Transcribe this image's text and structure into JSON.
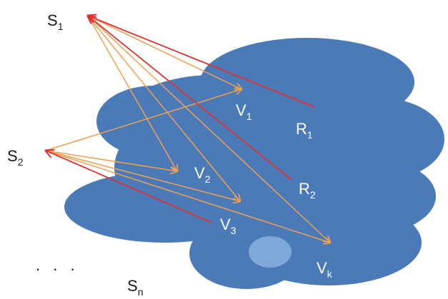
{
  "colors": {
    "cloud": "#4a7ab8",
    "highlight": "#7fa8d8",
    "orange": "#f0a050",
    "red": "#e03030",
    "dark_text": "#1a1a1a",
    "light_text": "#ffffff"
  },
  "sources": {
    "s1": {
      "main": "S",
      "sub": "1"
    },
    "s2": {
      "main": "S",
      "sub": "2"
    },
    "sn": {
      "main": "S",
      "sub": "n"
    }
  },
  "ellipsis": ". . .",
  "vantage_points": {
    "v1": {
      "main": "V",
      "sub": "1"
    },
    "v2": {
      "main": "V",
      "sub": "2"
    },
    "v3": {
      "main": "V",
      "sub": "3"
    },
    "vk": {
      "main": "V",
      "sub": "k"
    }
  },
  "receivers": {
    "r1": {
      "main": "R",
      "sub": "1"
    },
    "r2": {
      "main": "R",
      "sub": "2"
    }
  }
}
